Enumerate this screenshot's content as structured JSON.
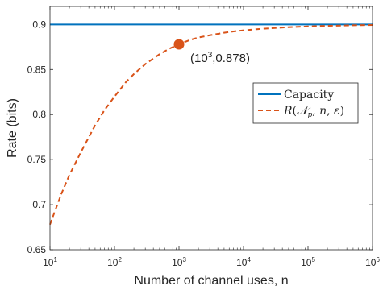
{
  "chart_data": {
    "type": "line",
    "xlabel": "Number of channel uses, n",
    "ylabel": "Rate (bits)",
    "x_scale": "log10",
    "xlim": [
      10,
      1000000
    ],
    "ylim": [
      0.65,
      0.92
    ],
    "x_ticks": [
      10,
      100,
      1000,
      10000,
      100000,
      1000000
    ],
    "x_tick_labels": [
      {
        "base": "10",
        "exp": "1"
      },
      {
        "base": "10",
        "exp": "2"
      },
      {
        "base": "10",
        "exp": "3"
      },
      {
        "base": "10",
        "exp": "4"
      },
      {
        "base": "10",
        "exp": "5"
      },
      {
        "base": "10",
        "exp": "6"
      }
    ],
    "y_ticks": [
      0.65,
      0.7,
      0.75,
      0.8,
      0.85,
      0.9
    ],
    "y_tick_labels": [
      "0.65",
      "0.7",
      "0.75",
      "0.8",
      "0.85",
      "0.9"
    ],
    "grid": false,
    "box": true,
    "legend_position": "center-right",
    "series": [
      {
        "name": "Capacity",
        "style": "solid",
        "color": "#0072BD",
        "x": [
          10,
          1000000
        ],
        "y": [
          0.9,
          0.9
        ]
      },
      {
        "name": "R(N_p, n, ε)",
        "style": "dashed",
        "color": "#D95319",
        "x": [
          10,
          15,
          20,
          30,
          50,
          70,
          100,
          150,
          200,
          300,
          500,
          700,
          1000,
          1500,
          2000,
          3000,
          5000,
          7000,
          10000,
          20000,
          50000,
          100000,
          200000,
          500000,
          1000000
        ],
        "y": [
          0.678,
          0.712,
          0.733,
          0.758,
          0.788,
          0.805,
          0.82,
          0.836,
          0.845,
          0.856,
          0.867,
          0.873,
          0.878,
          0.883,
          0.8855,
          0.888,
          0.8908,
          0.8923,
          0.8935,
          0.8953,
          0.897,
          0.8979,
          0.8985,
          0.8991,
          0.8994
        ]
      }
    ],
    "highlight_point": {
      "x": 1000,
      "y": 0.878,
      "color": "#D95319"
    },
    "annotation": {
      "base": "10",
      "exp": "3",
      "suffix": ",0.878)",
      "prefix": "("
    }
  }
}
